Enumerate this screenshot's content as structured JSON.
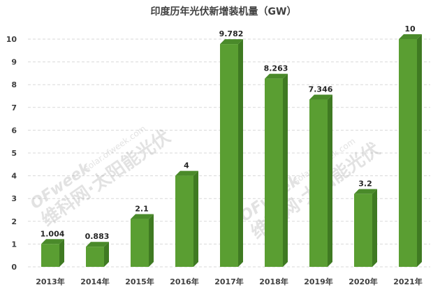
{
  "chart_data": {
    "type": "bar",
    "title": "印度历年光伏新增装机量（GW）",
    "categories": [
      "2013年",
      "2014年",
      "2015年",
      "2016年",
      "2017年",
      "2018年",
      "2019年",
      "2020年",
      "2021年"
    ],
    "values": [
      1.004,
      0.883,
      2.1,
      4,
      9.782,
      8.263,
      7.346,
      3.2,
      10
    ],
    "data_labels": [
      "1.004",
      "0.883",
      "2.1",
      "4",
      "9.782",
      "8.263",
      "7.346",
      "3.2",
      "10"
    ],
    "ylim": [
      0,
      10
    ],
    "yticks": [
      0,
      1,
      2,
      3,
      4,
      5,
      6,
      7,
      8,
      9,
      10
    ],
    "grid": true,
    "bar_color": "#5a9e32",
    "bar_side_color": "#3f7a22",
    "bar_top_color": "#4a8a2a"
  },
  "watermarks": [
    {
      "brand": "OFweek",
      "text": "维科网·太阳能光伏",
      "url": "solar.ofweek.com"
    },
    {
      "brand": "OFweek",
      "text": "维科网·太阳能光伏",
      "url": "solar.ofweek.com"
    }
  ]
}
